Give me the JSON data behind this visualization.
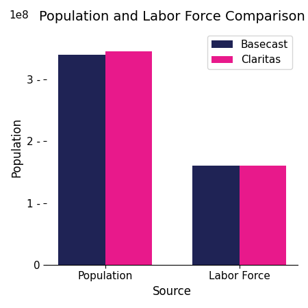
{
  "title": "Population and Labor Force Comparison",
  "xlabel": "Source",
  "ylabel": "Population",
  "categories": [
    "Population",
    "Labor Force"
  ],
  "basecast_values": [
    340000000.0,
    160000000.0
  ],
  "claritas_values": [
    345000000.0,
    160000000.0
  ],
  "basecast_color": "#1f2355",
  "claritas_color": "#e8198b",
  "bar_width": 0.35,
  "legend_labels": [
    "Basecast",
    "Claritas"
  ],
  "ylim": [
    0,
    380000000.0
  ],
  "yticks": [
    0,
    100000000.0,
    200000000.0,
    300000000.0
  ],
  "ytick_labels": [
    "0",
    "1 -",
    "2 -",
    "3 -"
  ],
  "title_fontsize": 14,
  "label_fontsize": 12,
  "tick_fontsize": 11
}
